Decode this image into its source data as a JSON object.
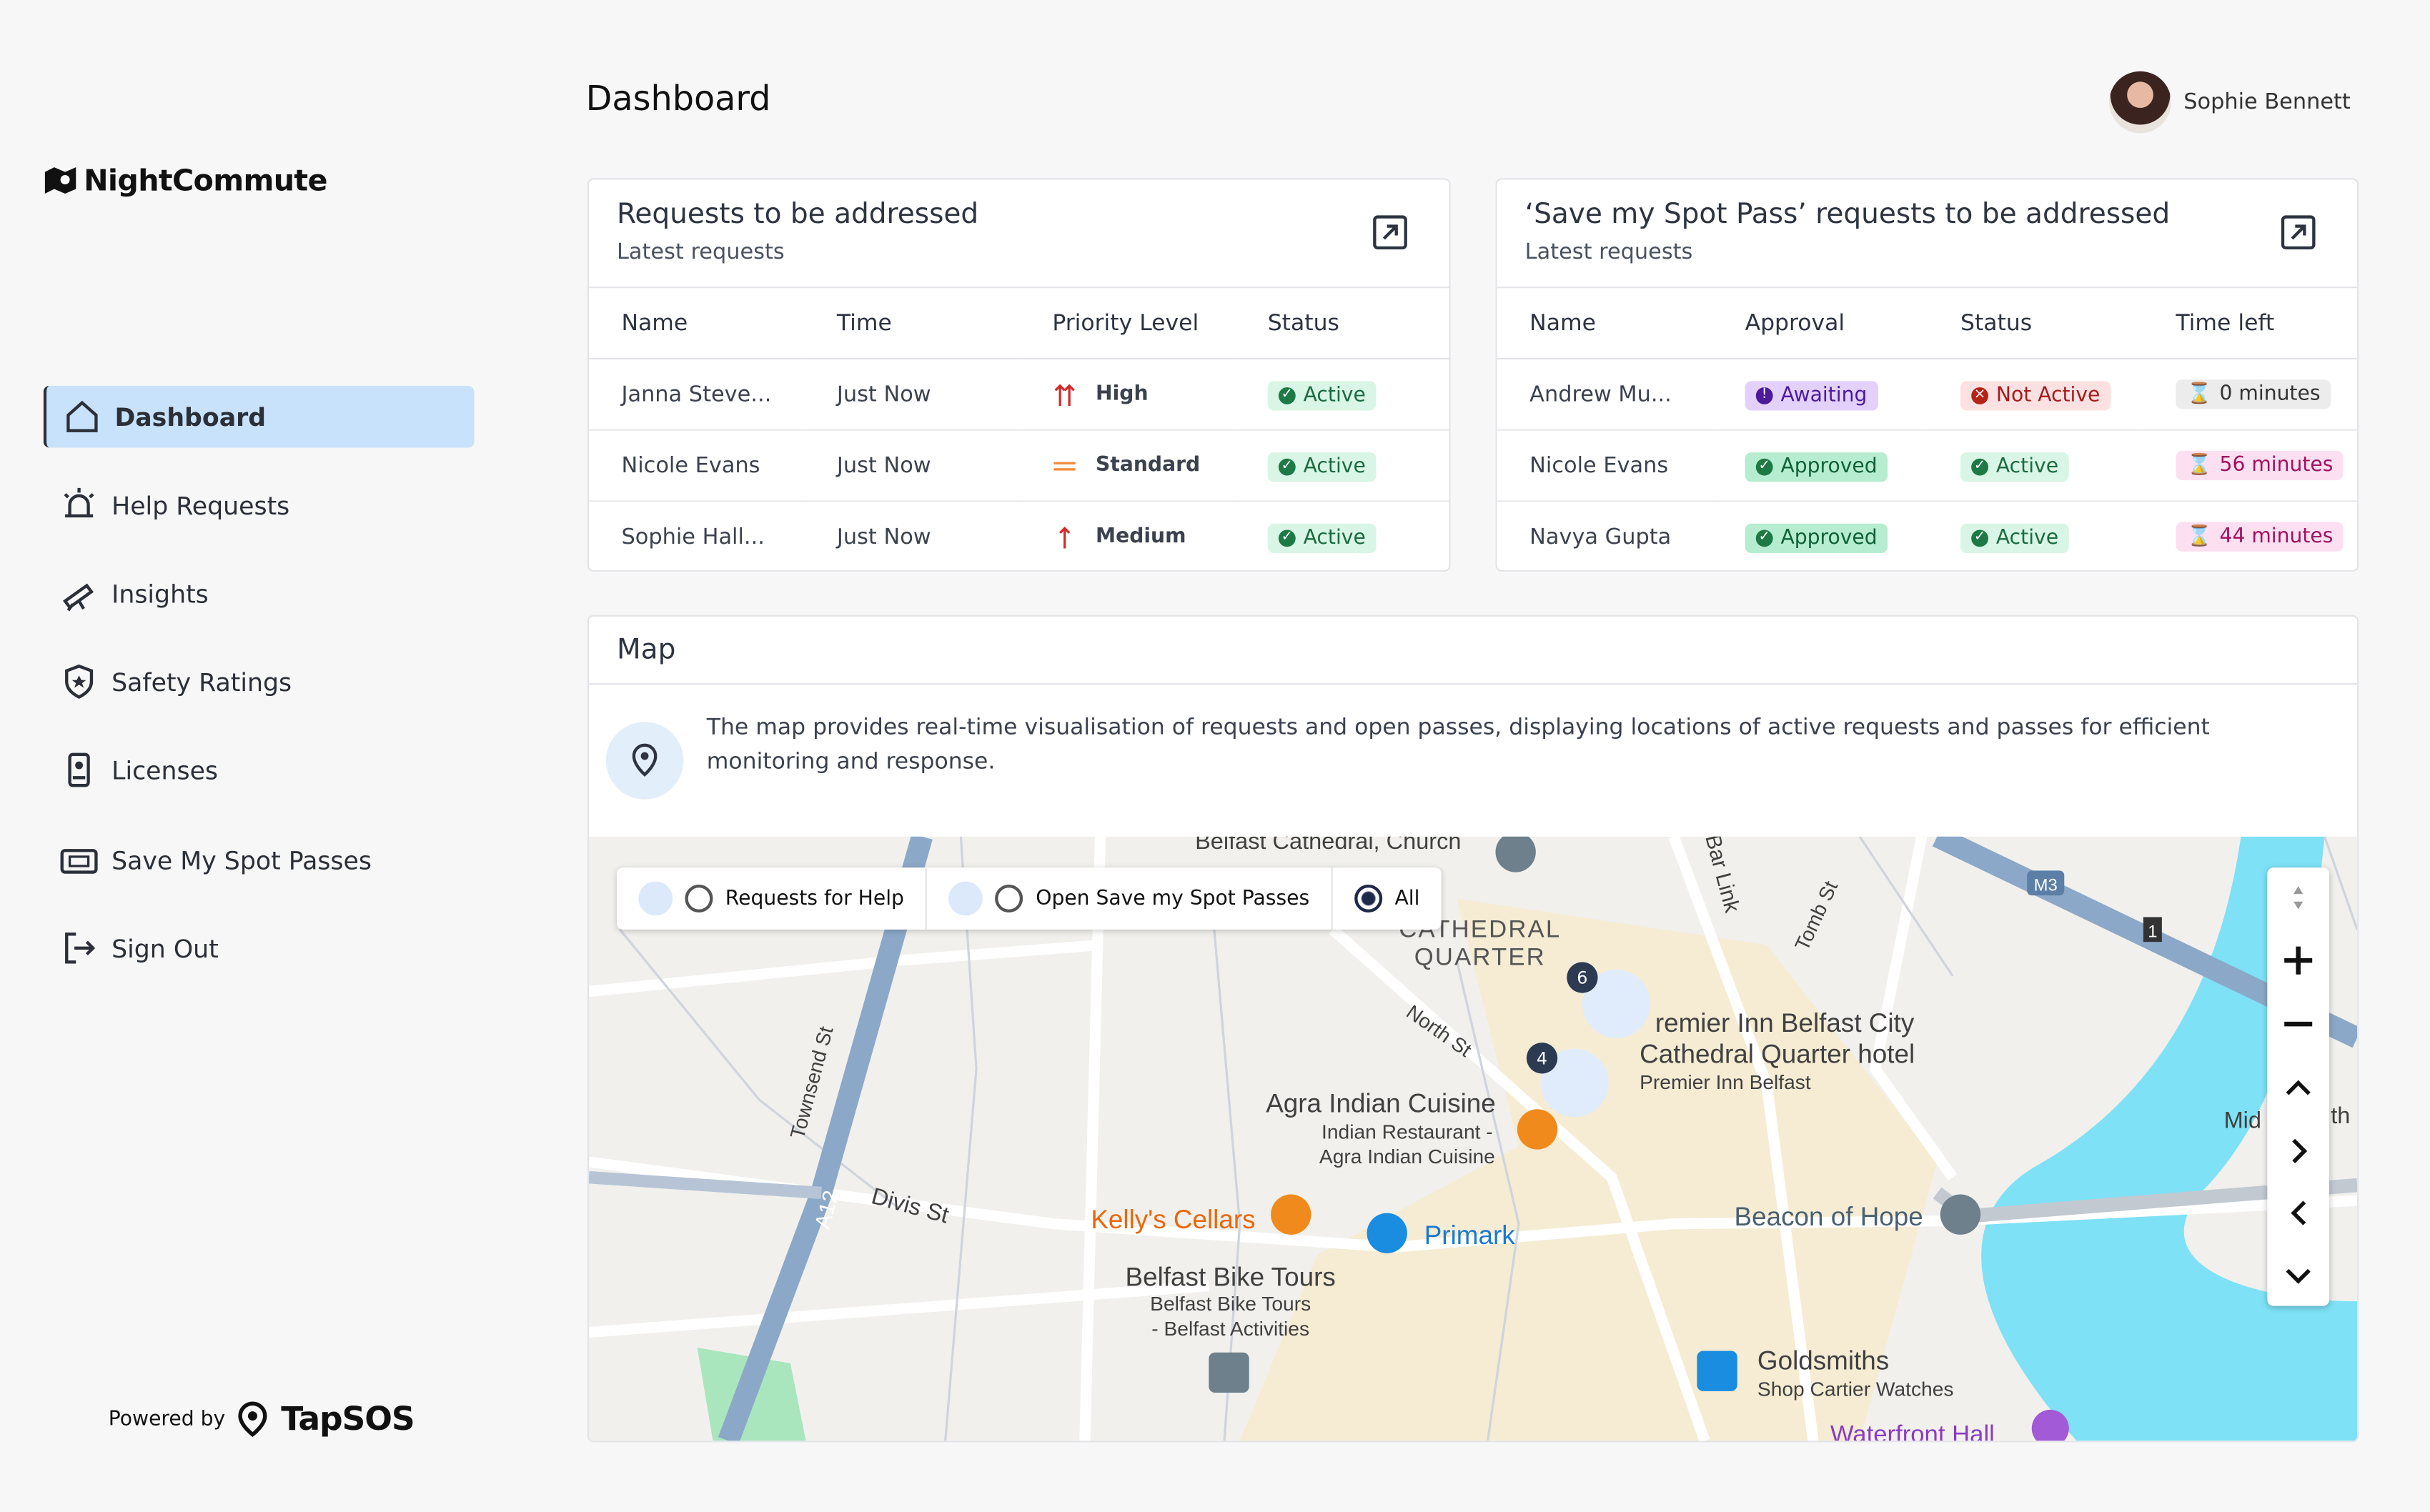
{
  "sidebar": {
    "brand": "NightCommute",
    "nav": [
      "Dashboard",
      "Help Requests",
      "Insights",
      "Safety Ratings",
      "Licenses",
      "Save My Spot Passes",
      "Sign Out"
    ],
    "powered_by": "Powered by",
    "powered_brand": "TapSOS"
  },
  "header": {
    "title": "Dashboard",
    "user": "Sophie Bennett"
  },
  "requests": {
    "title": "Requests to be addressed",
    "subtitle": "Latest requests",
    "columns": [
      "Name",
      "Time",
      "Priority Level",
      "Status"
    ],
    "rows": [
      [
        "Janna Steve...",
        "Just Now",
        "High",
        "Active"
      ],
      [
        "Nicole Evans",
        "Just Now",
        "Standard",
        "Active"
      ],
      [
        "Sophie Hall...",
        "Just Now",
        "Medium",
        "Active"
      ]
    ]
  },
  "passes": {
    "title": "‘Save my Spot Pass’ requests to be addressed",
    "subtitle": "Latest requests",
    "columns": [
      "Name",
      "Approval",
      "Status",
      "Time left"
    ],
    "rows": [
      [
        "Andrew Mu...",
        "Awaiting",
        "Not Active",
        "0 minutes"
      ],
      [
        "Nicole Evans",
        "Approved",
        "Active",
        "56 minutes"
      ],
      [
        "Navya Gupta",
        "Approved",
        "Active",
        "44 minutes"
      ]
    ]
  },
  "map": {
    "title": "Map",
    "description": "The map provides real-time visualisation of requests and open passes, displaying locations of active requests and passes for efficient monitoring and response.",
    "filters": [
      "Requests for Help",
      "Open Save my Spot Passes",
      "All"
    ],
    "cluster_counts": [
      "6",
      "4"
    ],
    "labels": [
      "Belfast Cathedral, Church",
      "CATHEDRAL",
      "QUARTER",
      "North St",
      "Townsend St",
      "A12",
      "Divis St",
      "Agra Indian Cuisine",
      "Indian Restaurant -",
      "Agra Indian Cuisine",
      "Kelly's Cellars",
      "Primark",
      "Belfast Bike Tours",
      "Belfast Bike Tours",
      "- Belfast Activities",
      "Beacon of Hope",
      "Goldsmiths",
      "Shop Cartier Watches",
      "Waterfront Hall",
      "Tomb St",
      "Bar Link",
      "remier Inn Belfast City",
      "Cathedral Quarter hotel",
      "Premier Inn Belfast",
      "M3",
      "1",
      "Mid",
      "th"
    ]
  }
}
